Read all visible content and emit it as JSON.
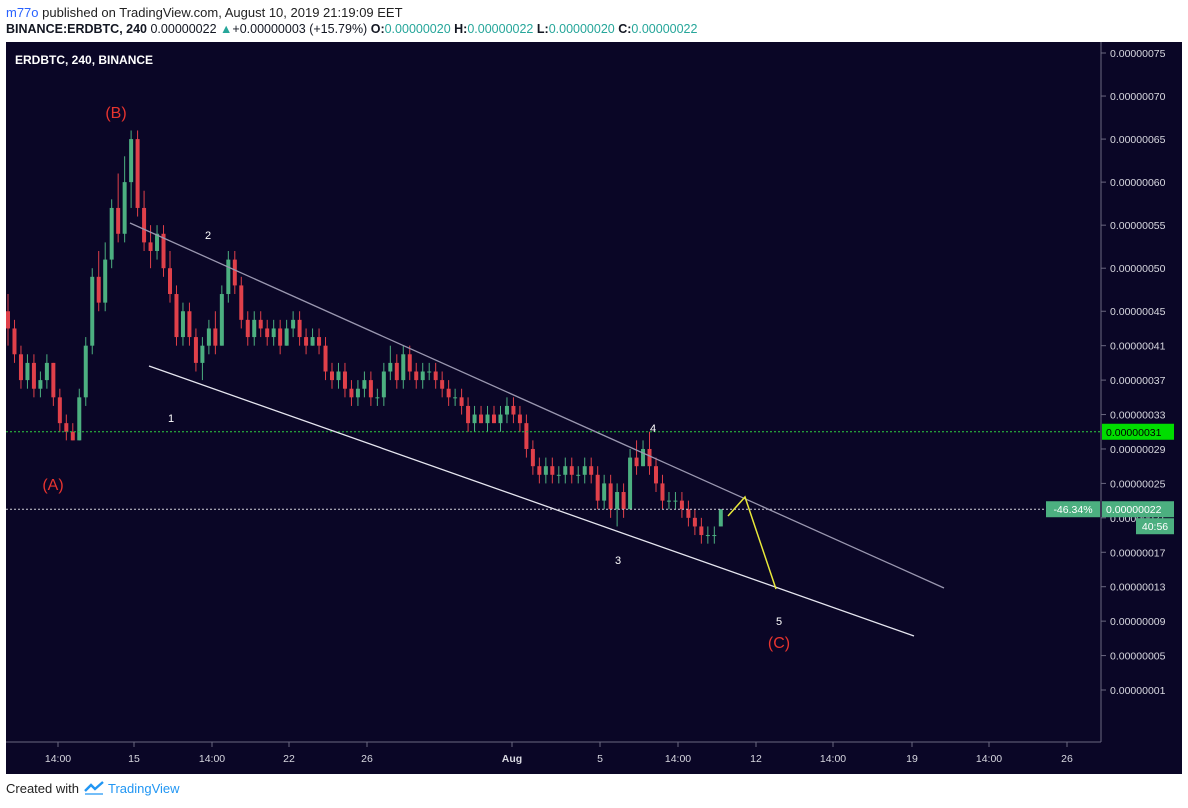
{
  "header": {
    "author": "m77o",
    "published_text": " published on TradingView.com, August 10, 2019 21:19:09 EET",
    "symbol_full": "BINANCE:ERDBTC, 240",
    "last_price": "0.00000022",
    "change_arrow": "▲",
    "change": "+0.00000003 (+15.79%)",
    "o_label": "O:",
    "o_value": "0.00000020",
    "h_label": "H:",
    "h_value": "0.00000022",
    "l_label": "L:",
    "l_value": "0.00000020",
    "c_label": "C:",
    "c_value": "0.00000022"
  },
  "legend": "ERDBTC, 240, BINANCE",
  "footer": {
    "created_with": "Created with",
    "brand": "TradingView"
  },
  "colors": {
    "chart_bg": "#0a0626",
    "up": "#4caf80",
    "down": "#e0404a",
    "wave_red": "#e8342f",
    "channel_upper": "#9a97b0",
    "channel_lower": "#e6e6f0",
    "projection": "#e8e83a",
    "hline_green": "#2ecc40",
    "hline_white": "#cfcfd8",
    "label_green": "#00dd00",
    "label_teal": "#4caf80"
  },
  "chart_data": {
    "type": "candlestick",
    "price_axis": {
      "ticks": [
        "0.00000075",
        "0.00000070",
        "0.00000065",
        "0.00000060",
        "0.00000055",
        "0.00000050",
        "0.00000045",
        "0.00000041",
        "0.00000037",
        "0.00000033",
        "0.00000029",
        "0.00000025",
        "0.00000021",
        "0.00000017",
        "0.00000013",
        "0.00000009",
        "0.00000005",
        "0.00000001"
      ],
      "ylim": [
        1e-08,
        7.5e-07
      ]
    },
    "time_axis": {
      "ticks": [
        "14:00",
        "15",
        "14:00",
        "22",
        "26",
        "Aug",
        "5",
        "14:00",
        "12",
        "14:00",
        "19",
        "14:00",
        "26"
      ],
      "bold": [
        "Aug"
      ]
    },
    "price_labels": {
      "level_line": "0.00000031",
      "current_line": "0.00000022",
      "change_pct": "-46.34%",
      "countdown": "40:56"
    },
    "wave_labels": [
      "(B)",
      "(A)",
      "(C)",
      "1",
      "2",
      "3",
      "4",
      "5"
    ],
    "series": [
      {
        "values": [
          [
            4.5e-07,
            4.7e-07,
            4.1e-07,
            4.3e-07
          ],
          [
            4.3e-07,
            4.4e-07,
            3.9e-07,
            4e-07
          ],
          [
            4e-07,
            4.1e-07,
            3.6e-07,
            3.7e-07
          ],
          [
            3.7e-07,
            4e-07,
            3.6e-07,
            3.9e-07
          ],
          [
            3.9e-07,
            4e-07,
            3.5e-07,
            3.6e-07
          ],
          [
            3.6e-07,
            3.8e-07,
            3.5e-07,
            3.7e-07
          ],
          [
            3.7e-07,
            4e-07,
            3.6e-07,
            3.9e-07
          ],
          [
            3.9e-07,
            3.9e-07,
            3.4e-07,
            3.5e-07
          ],
          [
            3.5e-07,
            3.6e-07,
            3.1e-07,
            3.2e-07
          ],
          [
            3.2e-07,
            3.3e-07,
            3e-07,
            3.1e-07
          ],
          [
            3.1e-07,
            3.2e-07,
            3e-07,
            3e-07
          ],
          [
            3e-07,
            3.6e-07,
            3e-07,
            3.5e-07
          ],
          [
            3.5e-07,
            4.2e-07,
            3.4e-07,
            4.1e-07
          ],
          [
            4.1e-07,
            5e-07,
            4e-07,
            4.9e-07
          ],
          [
            4.9e-07,
            5.2e-07,
            4.5e-07,
            4.6e-07
          ],
          [
            4.6e-07,
            5.3e-07,
            4.5e-07,
            5.1e-07
          ],
          [
            5.1e-07,
            5.8e-07,
            5e-07,
            5.7e-07
          ],
          [
            5.7e-07,
            6.1e-07,
            5.3e-07,
            5.4e-07
          ],
          [
            5.4e-07,
            6.3e-07,
            5.3e-07,
            6e-07
          ],
          [
            6e-07,
            6.6e-07,
            5.7e-07,
            6.5e-07
          ],
          [
            6.5e-07,
            6.6e-07,
            5.6e-07,
            5.7e-07
          ],
          [
            5.7e-07,
            5.9e-07,
            5.2e-07,
            5.3e-07
          ],
          [
            5.3e-07,
            5.5e-07,
            5e-07,
            5.2e-07
          ],
          [
            5.2e-07,
            5.5e-07,
            5.1e-07,
            5.4e-07
          ],
          [
            5.4e-07,
            5.5e-07,
            4.9e-07,
            5e-07
          ],
          [
            5e-07,
            5.2e-07,
            4.6e-07,
            4.7e-07
          ],
          [
            4.7e-07,
            4.8e-07,
            4.1e-07,
            4.2e-07
          ],
          [
            4.2e-07,
            4.6e-07,
            4.1e-07,
            4.5e-07
          ],
          [
            4.5e-07,
            4.6e-07,
            4.1e-07,
            4.2e-07
          ],
          [
            4.2e-07,
            4.3e-07,
            3.8e-07,
            3.9e-07
          ],
          [
            3.9e-07,
            4.2e-07,
            3.7e-07,
            4.1e-07
          ],
          [
            4.1e-07,
            4.4e-07,
            4e-07,
            4.3e-07
          ],
          [
            4.3e-07,
            4.5e-07,
            4e-07,
            4.1e-07
          ],
          [
            4.1e-07,
            4.8e-07,
            4.1e-07,
            4.7e-07
          ],
          [
            4.7e-07,
            5.2e-07,
            4.6e-07,
            5.1e-07
          ],
          [
            5.1e-07,
            5.2e-07,
            4.7e-07,
            4.8e-07
          ],
          [
            4.8e-07,
            4.9e-07,
            4.3e-07,
            4.4e-07
          ],
          [
            4.4e-07,
            4.5e-07,
            4.1e-07,
            4.2e-07
          ],
          [
            4.2e-07,
            4.5e-07,
            4.1e-07,
            4.4e-07
          ],
          [
            4.4e-07,
            4.5e-07,
            4.2e-07,
            4.3e-07
          ],
          [
            4.3e-07,
            4.4e-07,
            4.1e-07,
            4.2e-07
          ],
          [
            4.2e-07,
            4.4e-07,
            4.1e-07,
            4.3e-07
          ],
          [
            4.3e-07,
            4.4e-07,
            4e-07,
            4.1e-07
          ],
          [
            4.1e-07,
            4.4e-07,
            4.1e-07,
            4.3e-07
          ],
          [
            4.3e-07,
            4.5e-07,
            4.2e-07,
            4.4e-07
          ],
          [
            4.4e-07,
            4.5e-07,
            4.1e-07,
            4.2e-07
          ],
          [
            4.2e-07,
            4.3e-07,
            4e-07,
            4.1e-07
          ],
          [
            4.1e-07,
            4.3e-07,
            4.1e-07,
            4.2e-07
          ],
          [
            4.2e-07,
            4.3e-07,
            4e-07,
            4.1e-07
          ],
          [
            4.1e-07,
            4.2e-07,
            3.7e-07,
            3.8e-07
          ],
          [
            3.8e-07,
            3.9e-07,
            3.6e-07,
            3.7e-07
          ],
          [
            3.7e-07,
            3.9e-07,
            3.6e-07,
            3.8e-07
          ],
          [
            3.8e-07,
            3.9e-07,
            3.5e-07,
            3.6e-07
          ],
          [
            3.6e-07,
            3.7e-07,
            3.4e-07,
            3.5e-07
          ],
          [
            3.5e-07,
            3.7e-07,
            3.4e-07,
            3.6e-07
          ],
          [
            3.6e-07,
            3.8e-07,
            3.5e-07,
            3.7e-07
          ],
          [
            3.7e-07,
            3.8e-07,
            3.4e-07,
            3.5e-07
          ],
          [
            3.5e-07,
            3.6e-07,
            3.4e-07,
            3.5e-07
          ],
          [
            3.5e-07,
            3.9e-07,
            3.4e-07,
            3.8e-07
          ],
          [
            3.8e-07,
            4.1e-07,
            3.7e-07,
            3.9e-07
          ],
          [
            3.9e-07,
            4e-07,
            3.6e-07,
            3.7e-07
          ],
          [
            3.7e-07,
            4.1e-07,
            3.6e-07,
            4e-07
          ],
          [
            4e-07,
            4.1e-07,
            3.7e-07,
            3.8e-07
          ],
          [
            3.8e-07,
            3.9e-07,
            3.6e-07,
            3.7e-07
          ],
          [
            3.7e-07,
            3.9e-07,
            3.6e-07,
            3.8e-07
          ],
          [
            3.8e-07,
            3.9e-07,
            3.7e-07,
            3.8e-07
          ],
          [
            3.8e-07,
            3.9e-07,
            3.6e-07,
            3.7e-07
          ],
          [
            3.7e-07,
            3.8e-07,
            3.5e-07,
            3.6e-07
          ],
          [
            3.6e-07,
            3.7e-07,
            3.4e-07,
            3.5e-07
          ],
          [
            3.5e-07,
            3.6e-07,
            3.4e-07,
            3.5e-07
          ],
          [
            3.5e-07,
            3.6e-07,
            3.3e-07,
            3.4e-07
          ],
          [
            3.4e-07,
            3.5e-07,
            3.1e-07,
            3.2e-07
          ],
          [
            3.2e-07,
            3.4e-07,
            3.1e-07,
            3.3e-07
          ],
          [
            3.3e-07,
            3.4e-07,
            3.2e-07,
            3.2e-07
          ],
          [
            3.2e-07,
            3.4e-07,
            3.1e-07,
            3.3e-07
          ],
          [
            3.3e-07,
            3.4e-07,
            3.2e-07,
            3.2e-07
          ],
          [
            3.2e-07,
            3.4e-07,
            3.1e-07,
            3.3e-07
          ],
          [
            3.3e-07,
            3.5e-07,
            3.2e-07,
            3.4e-07
          ],
          [
            3.4e-07,
            3.5e-07,
            3.2e-07,
            3.3e-07
          ],
          [
            3.3e-07,
            3.4e-07,
            3.1e-07,
            3.2e-07
          ],
          [
            3.2e-07,
            3.3e-07,
            2.8e-07,
            2.9e-07
          ],
          [
            2.9e-07,
            3e-07,
            2.6e-07,
            2.7e-07
          ],
          [
            2.7e-07,
            2.8e-07,
            2.5e-07,
            2.6e-07
          ],
          [
            2.6e-07,
            2.8e-07,
            2.5e-07,
            2.7e-07
          ],
          [
            2.7e-07,
            2.8e-07,
            2.5e-07,
            2.6e-07
          ],
          [
            2.6e-07,
            2.7e-07,
            2.5e-07,
            2.6e-07
          ],
          [
            2.6e-07,
            2.8e-07,
            2.5e-07,
            2.7e-07
          ],
          [
            2.7e-07,
            2.8e-07,
            2.5e-07,
            2.6e-07
          ],
          [
            2.6e-07,
            2.7e-07,
            2.5e-07,
            2.6e-07
          ],
          [
            2.6e-07,
            2.8e-07,
            2.5e-07,
            2.7e-07
          ],
          [
            2.7e-07,
            2.8e-07,
            2.5e-07,
            2.6e-07
          ],
          [
            2.6e-07,
            2.7e-07,
            2.2e-07,
            2.3e-07
          ],
          [
            2.3e-07,
            2.6e-07,
            2.2e-07,
            2.5e-07
          ],
          [
            2.5e-07,
            2.6e-07,
            2.1e-07,
            2.2e-07
          ],
          [
            2.2e-07,
            2.5e-07,
            2e-07,
            2.4e-07
          ],
          [
            2.4e-07,
            2.5e-07,
            2.1e-07,
            2.2e-07
          ],
          [
            2.2e-07,
            2.9e-07,
            2.2e-07,
            2.8e-07
          ],
          [
            2.8e-07,
            3e-07,
            2.6e-07,
            2.7e-07
          ],
          [
            2.7e-07,
            3e-07,
            2.7e-07,
            2.9e-07
          ],
          [
            2.9e-07,
            3.1e-07,
            2.6e-07,
            2.7e-07
          ],
          [
            2.7e-07,
            2.8e-07,
            2.4e-07,
            2.5e-07
          ],
          [
            2.5e-07,
            2.6e-07,
            2.2e-07,
            2.3e-07
          ],
          [
            2.3e-07,
            2.4e-07,
            2.2e-07,
            2.3e-07
          ],
          [
            2.3e-07,
            2.4e-07,
            2.2e-07,
            2.3e-07
          ],
          [
            2.3e-07,
            2.4e-07,
            2.1e-07,
            2.2e-07
          ],
          [
            2.2e-07,
            2.3e-07,
            2e-07,
            2.1e-07
          ],
          [
            2.1e-07,
            2.2e-07,
            1.9e-07,
            2e-07
          ],
          [
            2e-07,
            2.1e-07,
            1.8e-07,
            1.9e-07
          ],
          [
            1.9e-07,
            2e-07,
            1.8e-07,
            1.9e-07
          ],
          [
            1.9e-07,
            2e-07,
            1.8e-07,
            1.9e-07
          ],
          [
            2e-07,
            2.2e-07,
            2e-07,
            2.2e-07
          ]
        ]
      }
    ]
  }
}
